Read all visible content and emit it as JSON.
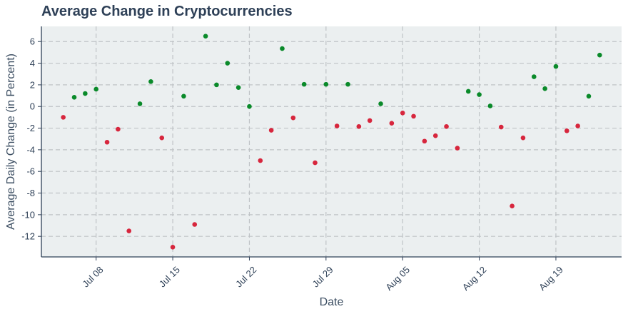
{
  "chart_data": {
    "type": "scatter",
    "title": "Average Change in Cryptocurrencies",
    "xlabel": "Date",
    "ylabel": "Average Daily Change (in Percent)",
    "x_axis": "date",
    "xlim": [
      "2024-07-03",
      "2024-08-25"
    ],
    "ylim": [
      -13.9,
      7.4
    ],
    "grid": true,
    "x_ticks": [
      {
        "date": "2024-07-08",
        "label": "Jul 08"
      },
      {
        "date": "2024-07-15",
        "label": "Jul 15"
      },
      {
        "date": "2024-07-22",
        "label": "Jul 22"
      },
      {
        "date": "2024-07-29",
        "label": "Jul 29"
      },
      {
        "date": "2024-08-05",
        "label": "Aug 05"
      },
      {
        "date": "2024-08-12",
        "label": "Aug 12"
      },
      {
        "date": "2024-08-19",
        "label": "Aug 19"
      }
    ],
    "y_ticks": [
      {
        "value": 6,
        "label": "6"
      },
      {
        "value": 4,
        "label": "4"
      },
      {
        "value": 2,
        "label": "2"
      },
      {
        "value": 0,
        "label": "0"
      },
      {
        "value": -2,
        "label": "-2"
      },
      {
        "value": -4,
        "label": "-4"
      },
      {
        "value": -6,
        "label": "-6"
      },
      {
        "value": -8,
        "label": "-8"
      },
      {
        "value": -10,
        "label": "-10"
      },
      {
        "value": -12,
        "label": "-12"
      }
    ],
    "colors": {
      "positive": "#0a8a2a",
      "negative": "#d7263d",
      "plot_bg": "#ebeff0",
      "grid": "#bfc3c6",
      "axis": "#2e4057"
    },
    "points": [
      {
        "x": "2024-07-05",
        "y": -1.0
      },
      {
        "x": "2024-07-06",
        "y": 0.85
      },
      {
        "x": "2024-07-07",
        "y": 1.2
      },
      {
        "x": "2024-07-08",
        "y": 1.6
      },
      {
        "x": "2024-07-09",
        "y": -3.3
      },
      {
        "x": "2024-07-10",
        "y": -2.1
      },
      {
        "x": "2024-07-11",
        "y": -11.5
      },
      {
        "x": "2024-07-12",
        "y": 0.25
      },
      {
        "x": "2024-07-13",
        "y": 2.3
      },
      {
        "x": "2024-07-14",
        "y": -2.9
      },
      {
        "x": "2024-07-15",
        "y": -13.0
      },
      {
        "x": "2024-07-16",
        "y": 0.95
      },
      {
        "x": "2024-07-17",
        "y": -10.9
      },
      {
        "x": "2024-07-18",
        "y": 6.5
      },
      {
        "x": "2024-07-19",
        "y": 2.0
      },
      {
        "x": "2024-07-20",
        "y": 4.0
      },
      {
        "x": "2024-07-21",
        "y": 1.75
      },
      {
        "x": "2024-07-22",
        "y": 0.0
      },
      {
        "x": "2024-07-23",
        "y": -5.0
      },
      {
        "x": "2024-07-24",
        "y": -2.2
      },
      {
        "x": "2024-07-25",
        "y": 5.35
      },
      {
        "x": "2024-07-26",
        "y": -1.05
      },
      {
        "x": "2024-07-27",
        "y": 2.05
      },
      {
        "x": "2024-07-28",
        "y": -5.2
      },
      {
        "x": "2024-07-29",
        "y": 2.05
      },
      {
        "x": "2024-07-30",
        "y": -1.8
      },
      {
        "x": "2024-07-31",
        "y": 2.05
      },
      {
        "x": "2024-08-01",
        "y": -1.85
      },
      {
        "x": "2024-08-02",
        "y": -1.3
      },
      {
        "x": "2024-08-03",
        "y": 0.25
      },
      {
        "x": "2024-08-04",
        "y": -1.55
      },
      {
        "x": "2024-08-05",
        "y": -0.6
      },
      {
        "x": "2024-08-06",
        "y": -0.9
      },
      {
        "x": "2024-08-07",
        "y": -3.2
      },
      {
        "x": "2024-08-08",
        "y": -2.7
      },
      {
        "x": "2024-08-09",
        "y": -1.85
      },
      {
        "x": "2024-08-10",
        "y": -3.85
      },
      {
        "x": "2024-08-11",
        "y": 1.4
      },
      {
        "x": "2024-08-12",
        "y": 1.1
      },
      {
        "x": "2024-08-13",
        "y": 0.05
      },
      {
        "x": "2024-08-14",
        "y": -1.9
      },
      {
        "x": "2024-08-15",
        "y": -9.2
      },
      {
        "x": "2024-08-16",
        "y": -2.9
      },
      {
        "x": "2024-08-17",
        "y": 2.75
      },
      {
        "x": "2024-08-18",
        "y": 1.65
      },
      {
        "x": "2024-08-19",
        "y": 3.7
      },
      {
        "x": "2024-08-20",
        "y": -2.25
      },
      {
        "x": "2024-08-21",
        "y": -1.8
      },
      {
        "x": "2024-08-22",
        "y": 0.95
      },
      {
        "x": "2024-08-23",
        "y": 4.75
      }
    ]
  }
}
